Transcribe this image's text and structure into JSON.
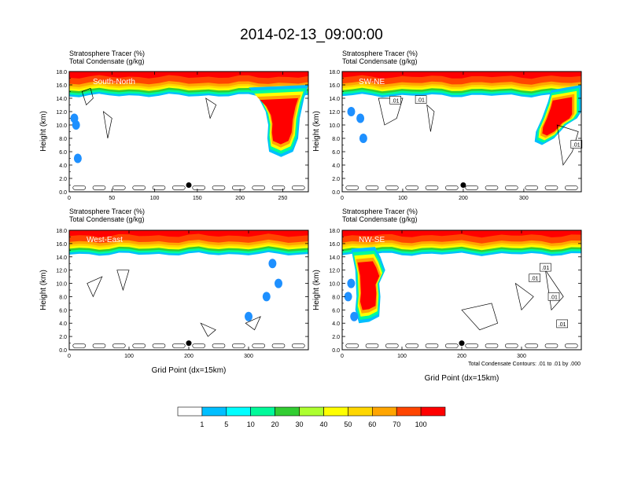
{
  "title": "2014-02-13_09:00:00",
  "colors": {
    "levels": [
      "#ffffff",
      "#1e90ff",
      "#00bfff",
      "#00ffff",
      "#00fa9a",
      "#32cd32",
      "#adff2f",
      "#ffff00",
      "#ffd700",
      "#ffa500",
      "#ff4500",
      "#ff0000"
    ],
    "frame": "#000000",
    "contour": "#000000"
  },
  "colorbar": {
    "labels": [
      "1",
      "5",
      "10",
      "20",
      "30",
      "40",
      "50",
      "60",
      "70",
      "100"
    ]
  },
  "footnote": "Total Condensate Contours: .01 to .01 by .000",
  "chart_data": [
    {
      "type": "heatmap",
      "name": "South-North",
      "label": "South-North",
      "line1": "Stratosphere Tracer   (%)",
      "line2": "Total Condensate   (g/kg)",
      "ylabel": "Height (km)",
      "xlabel": "",
      "xlim": [
        0,
        280
      ],
      "ylim": [
        0,
        18
      ],
      "xticks": [
        0,
        50,
        100,
        150,
        200,
        250
      ],
      "yticks": [
        0,
        2,
        4,
        6,
        8,
        10,
        12,
        14,
        16,
        18
      ],
      "ytick_labels": [
        "0.0",
        "2.0",
        "4.0",
        "6.0",
        "8.0",
        "10.0",
        "12.0",
        "14.0",
        "16.0",
        "18.0"
      ],
      "marker": {
        "x": 140,
        "y": 1.0
      },
      "contour_labels": []
    },
    {
      "type": "heatmap",
      "name": "SW-NE",
      "label": "SW-NE",
      "line1": "Stratosphere Tracer   (%)",
      "line2": "Total Condensate   (g/kg)",
      "ylabel": "Height (km)",
      "xlabel": "",
      "xlim": [
        0,
        395
      ],
      "ylim": [
        0,
        18
      ],
      "xticks": [
        0,
        100,
        200,
        300
      ],
      "yticks": [
        0,
        2,
        4,
        6,
        8,
        10,
        12,
        14,
        16,
        18
      ],
      "ytick_labels": [
        "0.0",
        "2.0",
        "4.0",
        "6.0",
        "8.0",
        "10.0",
        "12.0",
        "14.0",
        "16.0",
        "18.0"
      ],
      "marker": {
        "x": 200,
        "y": 1.0
      },
      "contour_labels": [
        {
          "text": ".01",
          "x": 88,
          "y": 13.6
        },
        {
          "text": ".01",
          "x": 130,
          "y": 13.7
        },
        {
          "text": ".01",
          "x": 387,
          "y": 7.0
        }
      ]
    },
    {
      "type": "heatmap",
      "name": "West-East",
      "label": "West-East",
      "line1": "Stratosphere Tracer   (%)",
      "line2": "Total Condensate   (g/kg)",
      "ylabel": "Height (km)",
      "xlabel": "Grid Point (dx=15km)",
      "xlim": [
        0,
        400
      ],
      "ylim": [
        0,
        18
      ],
      "xticks": [
        0,
        100,
        200,
        300
      ],
      "yticks": [
        0,
        2,
        4,
        6,
        8,
        10,
        12,
        14,
        16,
        18
      ],
      "ytick_labels": [
        "0.0",
        "2.0",
        "4.0",
        "6.0",
        "8.0",
        "10.0",
        "12.0",
        "14.0",
        "16.0",
        "18.0"
      ],
      "marker": {
        "x": 200,
        "y": 1.0
      },
      "contour_labels": []
    },
    {
      "type": "heatmap",
      "name": "NW-SE",
      "label": "NW-SE",
      "line1": "Stratosphere Tracer   (%)",
      "line2": "Total Condensate   (g/kg)",
      "ylabel": "Height (km)",
      "xlabel": "Grid Point (dx=15km)",
      "xlim": [
        0,
        400
      ],
      "ylim": [
        0,
        18
      ],
      "xticks": [
        0,
        100,
        200,
        300
      ],
      "yticks": [
        0,
        2,
        4,
        6,
        8,
        10,
        12,
        14,
        16,
        18
      ],
      "ytick_labels": [
        "0.0",
        "2.0",
        "4.0",
        "6.0",
        "8.0",
        "10.0",
        "12.0",
        "14.0",
        "16.0",
        "18.0"
      ],
      "marker": {
        "x": 200,
        "y": 1.0
      },
      "contour_labels": [
        {
          "text": ".01",
          "x": 340,
          "y": 12.3
        },
        {
          "text": ".01",
          "x": 322,
          "y": 10.7
        },
        {
          "text": ".01",
          "x": 354,
          "y": 7.9
        },
        {
          "text": ".01",
          "x": 368,
          "y": 3.8
        }
      ]
    }
  ]
}
